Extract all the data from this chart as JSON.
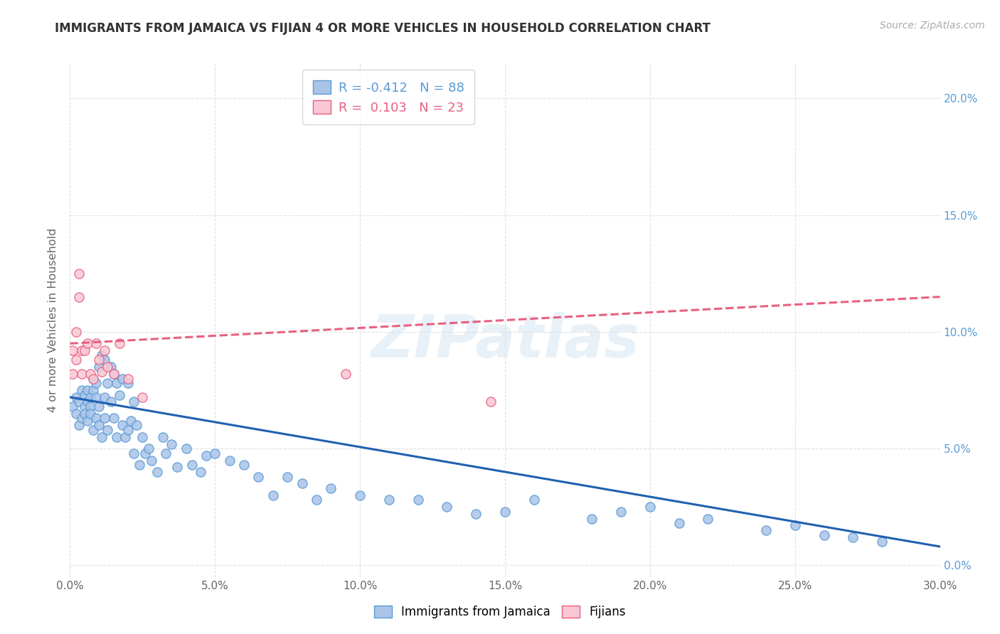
{
  "title": "IMMIGRANTS FROM JAMAICA VS FIJIAN 4 OR MORE VEHICLES IN HOUSEHOLD CORRELATION CHART",
  "source": "Source: ZipAtlas.com",
  "ylabel": "4 or more Vehicles in Household",
  "xlim": [
    0.0,
    0.3
  ],
  "ylim": [
    -0.005,
    0.215
  ],
  "xticks": [
    0.0,
    0.05,
    0.1,
    0.15,
    0.2,
    0.25,
    0.3
  ],
  "yticks": [
    0.0,
    0.05,
    0.1,
    0.15,
    0.2
  ],
  "xtick_labels": [
    "0.0%",
    "5.0%",
    "10.0%",
    "15.0%",
    "20.0%",
    "25.0%",
    "30.0%"
  ],
  "ytick_labels": [
    "0.0%",
    "5.0%",
    "10.0%",
    "15.0%",
    "20.0%"
  ],
  "jamaica_fill": "#aac4e8",
  "jamaica_edge": "#5b9bd5",
  "fijian_fill": "#f9c8d4",
  "fijian_edge": "#e86080",
  "jamaica_line": "#2060b0",
  "fijian_line": "#e86080",
  "bg_color": "#ffffff",
  "grid_color": "#dddddd",
  "title_color": "#333333",
  "right_tick_color": "#5b9bd5",
  "watermark": "ZIPatlas",
  "legend_r_jamaica": "-0.412",
  "legend_n_jamaica": "88",
  "legend_r_fijian": "0.103",
  "legend_n_fijian": "23",
  "jamaica_line_start_y": 0.072,
  "jamaica_line_end_y": 0.008,
  "fijian_line_start_y": 0.095,
  "fijian_line_end_y": 0.115,
  "jamaica_x": [
    0.001,
    0.002,
    0.002,
    0.003,
    0.003,
    0.004,
    0.004,
    0.005,
    0.005,
    0.005,
    0.006,
    0.006,
    0.006,
    0.007,
    0.007,
    0.007,
    0.008,
    0.008,
    0.008,
    0.009,
    0.009,
    0.009,
    0.01,
    0.01,
    0.01,
    0.011,
    0.011,
    0.012,
    0.012,
    0.012,
    0.013,
    0.013,
    0.014,
    0.014,
    0.015,
    0.015,
    0.016,
    0.016,
    0.017,
    0.018,
    0.018,
    0.019,
    0.02,
    0.02,
    0.021,
    0.022,
    0.022,
    0.023,
    0.024,
    0.025,
    0.026,
    0.027,
    0.028,
    0.03,
    0.032,
    0.033,
    0.035,
    0.037,
    0.04,
    0.042,
    0.045,
    0.047,
    0.05,
    0.055,
    0.06,
    0.065,
    0.07,
    0.075,
    0.08,
    0.085,
    0.09,
    0.1,
    0.11,
    0.12,
    0.13,
    0.14,
    0.15,
    0.16,
    0.18,
    0.19,
    0.2,
    0.21,
    0.22,
    0.24,
    0.25,
    0.26,
    0.27,
    0.28
  ],
  "jamaica_y": [
    0.068,
    0.072,
    0.065,
    0.07,
    0.06,
    0.075,
    0.063,
    0.068,
    0.073,
    0.065,
    0.07,
    0.075,
    0.062,
    0.072,
    0.068,
    0.065,
    0.08,
    0.075,
    0.058,
    0.078,
    0.072,
    0.063,
    0.085,
    0.06,
    0.068,
    0.09,
    0.055,
    0.088,
    0.063,
    0.072,
    0.078,
    0.058,
    0.085,
    0.07,
    0.082,
    0.063,
    0.078,
    0.055,
    0.073,
    0.08,
    0.06,
    0.055,
    0.078,
    0.058,
    0.062,
    0.07,
    0.048,
    0.06,
    0.043,
    0.055,
    0.048,
    0.05,
    0.045,
    0.04,
    0.055,
    0.048,
    0.052,
    0.042,
    0.05,
    0.043,
    0.04,
    0.047,
    0.048,
    0.045,
    0.043,
    0.038,
    0.03,
    0.038,
    0.035,
    0.028,
    0.033,
    0.03,
    0.028,
    0.028,
    0.025,
    0.022,
    0.023,
    0.028,
    0.02,
    0.023,
    0.025,
    0.018,
    0.02,
    0.015,
    0.017,
    0.013,
    0.012,
    0.01
  ],
  "fijian_x": [
    0.001,
    0.001,
    0.002,
    0.002,
    0.003,
    0.003,
    0.004,
    0.004,
    0.005,
    0.006,
    0.007,
    0.008,
    0.009,
    0.01,
    0.011,
    0.012,
    0.013,
    0.015,
    0.017,
    0.02,
    0.025,
    0.095,
    0.145
  ],
  "fijian_y": [
    0.092,
    0.082,
    0.1,
    0.088,
    0.125,
    0.115,
    0.092,
    0.082,
    0.092,
    0.095,
    0.082,
    0.08,
    0.095,
    0.088,
    0.083,
    0.092,
    0.085,
    0.082,
    0.095,
    0.08,
    0.072,
    0.082,
    0.07
  ]
}
